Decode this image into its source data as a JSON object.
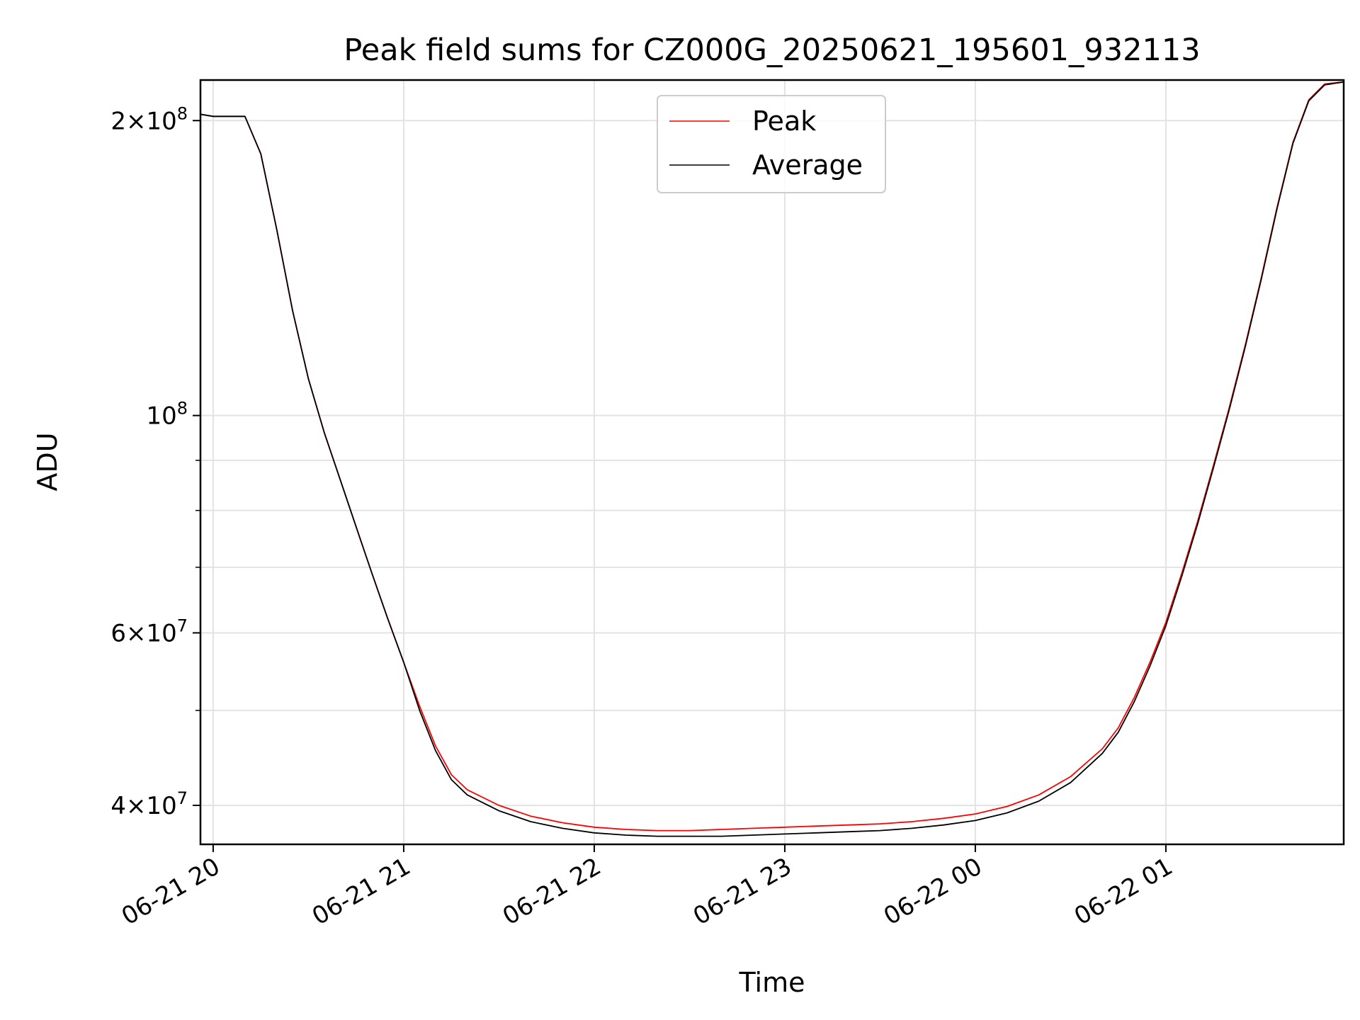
{
  "chart_data": {
    "type": "line",
    "title": "Peak field sums for CZ000G_20250621_195601_932113",
    "xlabel": "Time",
    "ylabel": "ADU",
    "y_scale": "log",
    "ylim": [
      36500000,
      220000000
    ],
    "xlim": [
      "2025-06-21 19:56",
      "2025-06-22 01:56"
    ],
    "grid": true,
    "legend_position": "upper center",
    "x_ticks": [
      {
        "value": "2025-06-21 20:00",
        "label": "06-21 20"
      },
      {
        "value": "2025-06-21 21:00",
        "label": "06-21 21"
      },
      {
        "value": "2025-06-21 22:00",
        "label": "06-21 22"
      },
      {
        "value": "2025-06-21 23:00",
        "label": "06-21 23"
      },
      {
        "value": "2025-06-22 00:00",
        "label": "06-22 00"
      },
      {
        "value": "2025-06-22 01:00",
        "label": "06-22 01"
      }
    ],
    "y_major_ticks": [
      {
        "value": 40000000,
        "mantissa": "4",
        "exponent": "7"
      },
      {
        "value": 60000000,
        "mantissa": "6",
        "exponent": "7"
      },
      {
        "value": 100000000,
        "mantissa": "",
        "exponent": "8"
      },
      {
        "value": 200000000,
        "mantissa": "2",
        "exponent": "8"
      }
    ],
    "y_minor_ticks": [
      50000000,
      70000000,
      80000000,
      90000000
    ],
    "series": [
      {
        "name": "Peak",
        "color": "#ff0000",
        "x": [
          "2025-06-21 19:56",
          "2025-06-21 20:00",
          "2025-06-21 20:05",
          "2025-06-21 20:10",
          "2025-06-21 20:15",
          "2025-06-21 20:20",
          "2025-06-21 20:25",
          "2025-06-21 20:30",
          "2025-06-21 20:35",
          "2025-06-21 20:40",
          "2025-06-21 20:45",
          "2025-06-21 20:50",
          "2025-06-21 20:55",
          "2025-06-21 21:00",
          "2025-06-21 21:05",
          "2025-06-21 21:10",
          "2025-06-21 21:15",
          "2025-06-21 21:20",
          "2025-06-21 21:30",
          "2025-06-21 21:40",
          "2025-06-21 21:50",
          "2025-06-21 22:00",
          "2025-06-21 22:10",
          "2025-06-21 22:20",
          "2025-06-21 22:30",
          "2025-06-21 22:40",
          "2025-06-21 22:50",
          "2025-06-21 23:00",
          "2025-06-21 23:10",
          "2025-06-21 23:20",
          "2025-06-21 23:30",
          "2025-06-21 23:40",
          "2025-06-21 23:50",
          "2025-06-22 00:00",
          "2025-06-22 00:10",
          "2025-06-22 00:20",
          "2025-06-22 00:30",
          "2025-06-22 00:40",
          "2025-06-22 00:45",
          "2025-06-22 00:50",
          "2025-06-22 00:55",
          "2025-06-22 01:00",
          "2025-06-22 01:05",
          "2025-06-22 01:10",
          "2025-06-22 01:15",
          "2025-06-22 01:20",
          "2025-06-22 01:25",
          "2025-06-22 01:30",
          "2025-06-22 01:35",
          "2025-06-22 01:40",
          "2025-06-22 01:45",
          "2025-06-22 01:50",
          "2025-06-22 01:56"
        ],
        "values": [
          203000000,
          202000000,
          202000000,
          202000000,
          185000000,
          155000000,
          128000000,
          109000000,
          96000000,
          86000000,
          77000000,
          69000000,
          62000000,
          56000000,
          50500000,
          46000000,
          43000000,
          41500000,
          40000000,
          39000000,
          38400000,
          38000000,
          37800000,
          37700000,
          37700000,
          37800000,
          37900000,
          38000000,
          38100000,
          38200000,
          38300000,
          38500000,
          38800000,
          39200000,
          39900000,
          41000000,
          42800000,
          45700000,
          48000000,
          51500000,
          56000000,
          61500000,
          69000000,
          78000000,
          89000000,
          102000000,
          118000000,
          138000000,
          163000000,
          190000000,
          210000000,
          218000000,
          219000000
        ]
      },
      {
        "name": "Average",
        "color": "#000000",
        "x": [
          "2025-06-21 19:56",
          "2025-06-21 20:00",
          "2025-06-21 20:05",
          "2025-06-21 20:10",
          "2025-06-21 20:15",
          "2025-06-21 20:20",
          "2025-06-21 20:25",
          "2025-06-21 20:30",
          "2025-06-21 20:35",
          "2025-06-21 20:40",
          "2025-06-21 20:45",
          "2025-06-21 20:50",
          "2025-06-21 20:55",
          "2025-06-21 21:00",
          "2025-06-21 21:05",
          "2025-06-21 21:10",
          "2025-06-21 21:15",
          "2025-06-21 21:20",
          "2025-06-21 21:30",
          "2025-06-21 21:40",
          "2025-06-21 21:50",
          "2025-06-21 22:00",
          "2025-06-21 22:10",
          "2025-06-21 22:20",
          "2025-06-21 22:30",
          "2025-06-21 22:40",
          "2025-06-21 22:50",
          "2025-06-21 23:00",
          "2025-06-21 23:10",
          "2025-06-21 23:20",
          "2025-06-21 23:30",
          "2025-06-21 23:40",
          "2025-06-21 23:50",
          "2025-06-22 00:00",
          "2025-06-22 00:10",
          "2025-06-22 00:20",
          "2025-06-22 00:30",
          "2025-06-22 00:40",
          "2025-06-22 00:45",
          "2025-06-22 00:50",
          "2025-06-22 00:55",
          "2025-06-22 01:00",
          "2025-06-22 01:05",
          "2025-06-22 01:10",
          "2025-06-22 01:15",
          "2025-06-22 01:20",
          "2025-06-22 01:25",
          "2025-06-22 01:30",
          "2025-06-22 01:35",
          "2025-06-22 01:40",
          "2025-06-22 01:45",
          "2025-06-22 01:50",
          "2025-06-22 01:56"
        ],
        "values": [
          203000000,
          202000000,
          202000000,
          202000000,
          185000000,
          155000000,
          128000000,
          109000000,
          96000000,
          86000000,
          77000000,
          69000000,
          62000000,
          56000000,
          50000000,
          45500000,
          42500000,
          41000000,
          39500000,
          38500000,
          37900000,
          37500000,
          37300000,
          37200000,
          37200000,
          37200000,
          37300000,
          37400000,
          37500000,
          37600000,
          37700000,
          37900000,
          38200000,
          38600000,
          39300000,
          40400000,
          42200000,
          45200000,
          47500000,
          51000000,
          55500000,
          61000000,
          68500000,
          77500000,
          88500000,
          101500000,
          117500000,
          137500000,
          162500000,
          189500000,
          209500000,
          217500000,
          219000000
        ]
      }
    ]
  }
}
